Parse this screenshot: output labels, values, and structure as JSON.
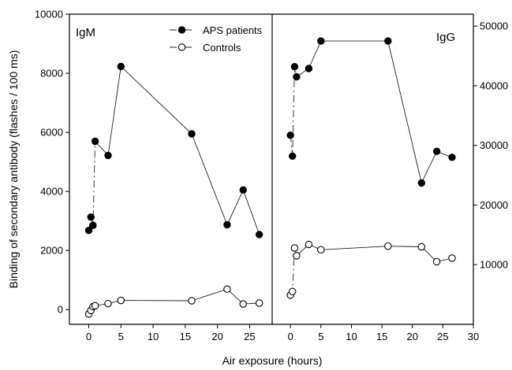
{
  "chart_data": {
    "type": "scatter",
    "xlabel": "Air exposure (hours)",
    "ylabel": "Binding of secondary antibody (flashes / 100 ms)",
    "legend": {
      "placement": "top-center of left panel",
      "entries": [
        "APS patients",
        "Controls"
      ]
    },
    "panels": [
      {
        "label": "IgM",
        "xlim": [
          -3,
          28.5
        ],
        "x_ticks": [
          0,
          5,
          10,
          15,
          20,
          25
        ],
        "ylim": [
          -500,
          10000
        ],
        "y_ticks": [
          0,
          2000,
          4000,
          6000,
          8000,
          10000
        ],
        "y_axis_side": "left",
        "series": [
          {
            "name": "APS patients",
            "marker": "filled-circle",
            "x": [
              0,
              0.33,
              0.67,
              1,
              3,
              5,
              16,
              21.5,
              24,
              26.5
            ],
            "y": [
              2680,
              3130,
              2850,
              5700,
              5220,
              8230,
              5950,
              2870,
              4050,
              2540
            ]
          },
          {
            "name": "Controls",
            "marker": "open-circle",
            "x": [
              0,
              0.33,
              0.67,
              1,
              3,
              5,
              16,
              21.5,
              24,
              26.5
            ],
            "y": [
              -150,
              -30,
              100,
              130,
              200,
              310,
              300,
              690,
              190,
              220
            ]
          }
        ]
      },
      {
        "label": "IgG",
        "xlim": [
          -3,
          30
        ],
        "x_ticks": [
          0,
          5,
          10,
          15,
          20,
          25,
          30
        ],
        "ylim": [
          0,
          52000
        ],
        "y_ticks": [
          10000,
          20000,
          30000,
          40000,
          50000
        ],
        "y_axis_side": "right",
        "series": [
          {
            "name": "APS patients",
            "marker": "filled-circle",
            "x": [
              0,
              0.33,
              0.67,
              1,
              3,
              5,
              16,
              21.5,
              24,
              26.5
            ],
            "y": [
              31700,
              28200,
              43200,
              41500,
              42900,
              47500,
              47500,
              23700,
              29000,
              28000
            ]
          },
          {
            "name": "Controls",
            "marker": "open-circle",
            "x": [
              0,
              0.33,
              0.67,
              1,
              3,
              5,
              16,
              21.5,
              24,
              26.5
            ],
            "y": [
              4900,
              5500,
              12800,
              11500,
              13400,
              12500,
              13100,
              13000,
              10500,
              11100
            ]
          }
        ]
      }
    ]
  }
}
